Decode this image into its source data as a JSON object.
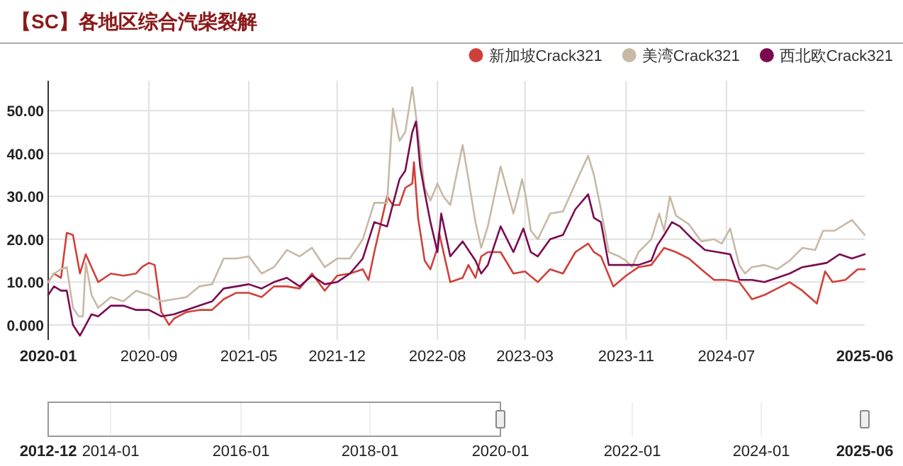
{
  "chart_data": [
    {
      "type": "line",
      "title": "【SC】各地区综合汽柴裂解",
      "grid": true,
      "legend": "top right",
      "marker": "none",
      "line_style": "solid",
      "xlim": [
        "2020-01",
        "2025-06"
      ],
      "ylim": [
        -3.5,
        57
      ],
      "xticks": [
        {
          "value": "2020-01",
          "label": "2020-01"
        },
        {
          "value": "2020-09",
          "label": "2020-09"
        },
        {
          "value": "2021-05",
          "label": "2021-05"
        },
        {
          "value": "2021-12",
          "label": "2021-12"
        },
        {
          "value": "2022-08",
          "label": "2022-08"
        },
        {
          "value": "2023-03",
          "label": "2023-03"
        },
        {
          "value": "2023-11",
          "label": "2023-11"
        },
        {
          "value": "2024-07",
          "label": "2024-07"
        },
        {
          "value": "2025-06",
          "label": "2025-06"
        }
      ],
      "yticks": [
        {
          "value": 0,
          "label": "0.000"
        },
        {
          "value": 10,
          "label": "10.00"
        },
        {
          "value": 20,
          "label": "20.00"
        },
        {
          "value": 30,
          "label": "30.00"
        },
        {
          "value": 40,
          "label": "40.00"
        },
        {
          "value": 50,
          "label": "50.00"
        }
      ],
      "series": [
        {
          "name": "新加坡Crack321",
          "color": "#d0403a",
          "x": [
            "2020-01-01",
            "2020-01-15",
            "2020-02-01",
            "2020-02-15",
            "2020-03-01",
            "2020-03-18",
            "2020-04-01",
            "2020-05-01",
            "2020-06-01",
            "2020-07-01",
            "2020-08-01",
            "2020-08-15",
            "2020-09-01",
            "2020-09-15",
            "2020-10-01",
            "2020-10-20",
            "2020-11-01",
            "2020-12-01",
            "2021-01-01",
            "2021-02-01",
            "2021-03-01",
            "2021-04-01",
            "2021-05-01",
            "2021-06-01",
            "2021-07-01",
            "2021-08-01",
            "2021-09-01",
            "2021-10-01",
            "2021-11-01",
            "2021-12-01",
            "2022-01-01",
            "2022-02-01",
            "2022-02-15",
            "2022-03-01",
            "2022-04-01",
            "2022-04-15",
            "2022-05-01",
            "2022-05-15",
            "2022-06-01",
            "2022-06-05",
            "2022-06-15",
            "2022-07-01",
            "2022-07-15",
            "2022-08-01",
            "2022-08-05",
            "2022-09-01",
            "2022-10-01",
            "2022-10-15",
            "2022-11-01",
            "2022-11-15",
            "2022-12-01",
            "2023-01-01",
            "2023-02-01",
            "2023-03-01",
            "2023-04-01",
            "2023-05-01",
            "2023-06-01",
            "2023-07-01",
            "2023-08-01",
            "2023-08-15",
            "2023-09-01",
            "2023-10-01",
            "2023-11-01",
            "2023-12-01",
            "2024-01-01",
            "2024-02-01",
            "2024-03-01",
            "2024-04-01",
            "2024-05-01",
            "2024-06-01",
            "2024-07-01",
            "2024-08-01",
            "2024-09-01",
            "2024-10-01",
            "2024-11-01",
            "2024-12-01",
            "2025-01-01",
            "2025-02-05",
            "2025-02-25",
            "2025-03-15",
            "2025-04-15",
            "2025-05-15",
            "2025-06-01"
          ],
          "values": [
            10,
            12,
            11,
            21.5,
            21,
            12,
            16.5,
            10,
            12,
            11.5,
            12,
            13.5,
            14.5,
            14,
            3,
            0,
            1.5,
            3,
            3.5,
            3.5,
            6,
            7.5,
            7.5,
            6.5,
            9,
            9,
            8.5,
            12,
            8,
            11.5,
            12,
            13,
            10.5,
            17,
            30,
            28,
            28,
            32,
            33,
            38,
            25,
            15,
            13,
            18,
            21.5,
            10,
            11,
            14,
            11,
            16,
            17,
            17,
            12,
            12.5,
            10,
            13,
            12,
            17,
            19,
            17,
            16,
            9,
            11.5,
            13.5,
            14,
            18,
            17,
            15.5,
            13,
            10.5,
            10.5,
            10,
            6,
            7,
            8.5,
            10,
            8,
            5,
            12.5,
            10,
            10.5,
            13,
            13
          ]
        },
        {
          "name": "美湾Crack321",
          "color": "#c8b9a5",
          "x": [
            "2020-01-01",
            "2020-01-15",
            "2020-02-01",
            "2020-02-15",
            "2020-03-01",
            "2020-03-15",
            "2020-03-25",
            "2020-04-01",
            "2020-04-15",
            "2020-05-01",
            "2020-06-01",
            "2020-07-01",
            "2020-08-01",
            "2020-09-01",
            "2020-10-01",
            "2020-11-01",
            "2020-12-01",
            "2021-01-01",
            "2021-02-01",
            "2021-03-01",
            "2021-04-01",
            "2021-05-01",
            "2021-06-01",
            "2021-07-01",
            "2021-08-01",
            "2021-09-01",
            "2021-10-01",
            "2021-11-01",
            "2021-12-01",
            "2022-01-01",
            "2022-02-01",
            "2022-03-01",
            "2022-04-01",
            "2022-04-15",
            "2022-05-01",
            "2022-05-15",
            "2022-06-01",
            "2022-06-15",
            "2022-07-01",
            "2022-07-15",
            "2022-08-01",
            "2022-08-15",
            "2022-09-01",
            "2022-10-01",
            "2022-10-15",
            "2022-11-01",
            "2022-11-15",
            "2022-12-01",
            "2023-01-01",
            "2023-02-01",
            "2023-02-12",
            "2023-02-22",
            "2023-03-03",
            "2023-03-15",
            "2023-04-01",
            "2023-05-01",
            "2023-06-01",
            "2023-07-01",
            "2023-08-01",
            "2023-08-15",
            "2023-09-01",
            "2023-09-20",
            "2023-10-15",
            "2023-11-01",
            "2023-11-15",
            "2023-12-01",
            "2024-01-01",
            "2024-01-20",
            "2024-02-01",
            "2024-02-15",
            "2024-03-01",
            "2024-04-01",
            "2024-05-01",
            "2024-06-01",
            "2024-06-20",
            "2024-07-10",
            "2024-08-01",
            "2024-08-15",
            "2024-09-01",
            "2024-10-01",
            "2024-11-01",
            "2024-12-01",
            "2025-01-01",
            "2025-02-01",
            "2025-02-20",
            "2025-03-20",
            "2025-05-01",
            "2025-06-01"
          ],
          "values": [
            10,
            12,
            13,
            13.5,
            4,
            2,
            2,
            14.5,
            7,
            4,
            6.5,
            5.5,
            8,
            7,
            5.5,
            6,
            6.5,
            9,
            9.5,
            15.5,
            15.5,
            16,
            12,
            13.5,
            17.5,
            16,
            18,
            13.5,
            15.5,
            15.5,
            20,
            28.5,
            28.5,
            50.5,
            43,
            45,
            55.5,
            45,
            32,
            29,
            33,
            30,
            28,
            42,
            34,
            24,
            18,
            23,
            37,
            26,
            30,
            34,
            30,
            22,
            20,
            26,
            26.5,
            33,
            39.5,
            35,
            27,
            17,
            16,
            15,
            13.5,
            17,
            20,
            26,
            22,
            30,
            25.5,
            23.5,
            19.5,
            20,
            19,
            22.5,
            14,
            12,
            13.5,
            14,
            13,
            15,
            18,
            17.5,
            22,
            22,
            24.5,
            21
          ]
        },
        {
          "name": "西北欧Crack321",
          "color": "#7b0a4f",
          "x": [
            "2020-01-01",
            "2020-01-15",
            "2020-02-01",
            "2020-02-15",
            "2020-03-01",
            "2020-03-18",
            "2020-04-01",
            "2020-04-15",
            "2020-05-01",
            "2020-06-01",
            "2020-07-01",
            "2020-08-01",
            "2020-09-01",
            "2020-10-01",
            "2020-11-01",
            "2020-12-01",
            "2021-01-01",
            "2021-02-01",
            "2021-03-01",
            "2021-04-01",
            "2021-05-01",
            "2021-06-01",
            "2021-07-01",
            "2021-08-01",
            "2021-09-01",
            "2021-10-01",
            "2021-11-01",
            "2021-12-01",
            "2022-01-01",
            "2022-02-01",
            "2022-03-01",
            "2022-04-01",
            "2022-05-01",
            "2022-05-15",
            "2022-06-01",
            "2022-06-10",
            "2022-06-20",
            "2022-07-01",
            "2022-07-15",
            "2022-08-01",
            "2022-08-10",
            "2022-09-01",
            "2022-10-01",
            "2022-11-01",
            "2022-11-15",
            "2022-12-01",
            "2023-01-01",
            "2023-02-01",
            "2023-02-25",
            "2023-03-15",
            "2023-04-01",
            "2023-05-01",
            "2023-06-01",
            "2023-07-01",
            "2023-08-01",
            "2023-08-15",
            "2023-09-01",
            "2023-09-20",
            "2023-11-01",
            "2023-12-01",
            "2024-01-01",
            "2024-01-15",
            "2024-02-01",
            "2024-02-20",
            "2024-03-10",
            "2024-04-10",
            "2024-05-10",
            "2024-06-10",
            "2024-07-10",
            "2024-08-01",
            "2024-09-01",
            "2024-10-01",
            "2024-11-01",
            "2024-12-01",
            "2025-01-01",
            "2025-02-01",
            "2025-03-01",
            "2025-04-01",
            "2025-05-01",
            "2025-06-01"
          ],
          "values": [
            7,
            9,
            8,
            8,
            0,
            -2.5,
            0,
            2.5,
            2,
            4.5,
            4.5,
            3.5,
            3.5,
            2,
            2.5,
            3.5,
            4.5,
            5.5,
            8.5,
            9,
            9.5,
            8.5,
            10,
            11,
            9,
            11.5,
            9.5,
            10,
            12,
            15.5,
            24,
            23,
            34,
            36,
            45,
            47.5,
            37,
            31,
            24,
            17,
            26,
            16,
            19.5,
            15,
            12,
            14,
            23,
            17,
            22.5,
            17,
            16,
            20,
            21,
            27,
            30.5,
            25,
            24,
            14,
            14,
            14,
            15,
            18.5,
            21,
            24,
            23,
            20,
            17.5,
            17,
            16.5,
            10.5,
            10.5,
            10,
            11,
            12,
            13.5,
            14,
            14.5,
            16.5,
            15.5,
            16.5
          ]
        }
      ]
    },
    {
      "type": "other",
      "annotations": [
        "2012-12",
        "2014-01",
        "2016-01",
        "2018-01",
        "2020-01",
        "2022-01",
        "2024-01",
        "2025-06"
      ]
    }
  ]
}
